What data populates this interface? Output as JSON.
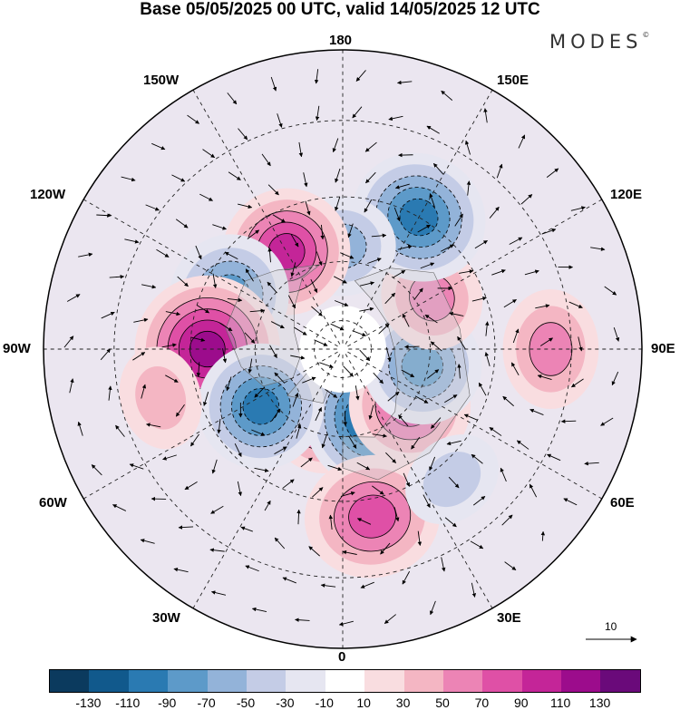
{
  "title": "Base 05/05/2025 00 UTC, valid 14/05/2025 12 UTC",
  "brand": "MODES",
  "brand_mark": "©",
  "longitude_labels": [
    "180",
    "150E",
    "120E",
    "90E",
    "60E",
    "30E",
    "0",
    "30W",
    "60W",
    "90W",
    "120W",
    "150W"
  ],
  "reference_vector": {
    "label": "10",
    "icon": "arrow-right-icon"
  },
  "colorbar": {
    "colors": [
      "#0b3a5e",
      "#11598c",
      "#2a7ab2",
      "#5d9ac9",
      "#93b3d9",
      "#c4cce6",
      "#e6e6f1",
      "#ffffff",
      "#f9dde0",
      "#f4b6c3",
      "#ec84b5",
      "#df50a6",
      "#c42598",
      "#9c0c8c",
      "#6a0a7a"
    ],
    "ticks": [
      "-130",
      "-110",
      "-90",
      "-70",
      "-50",
      "-30",
      "-10",
      "10",
      "30",
      "50",
      "70",
      "90",
      "110",
      "130"
    ]
  },
  "anomaly_centers": [
    {
      "lon": -15,
      "lat": 68,
      "value": 85
    },
    {
      "lon": 22,
      "lat": 64,
      "value": -105
    },
    {
      "lon": 50,
      "lat": 60,
      "value": 80
    },
    {
      "lon": 78,
      "lat": 62,
      "value": -75
    },
    {
      "lon": 120,
      "lat": 55,
      "value": 50
    },
    {
      "lon": 150,
      "lat": 40,
      "value": -85
    },
    {
      "lon": 180,
      "lat": 55,
      "value": -50
    },
    {
      "lon": -150,
      "lat": 52,
      "value": 85
    },
    {
      "lon": -115,
      "lat": 48,
      "value": -75
    },
    {
      "lon": -90,
      "lat": 45,
      "value": 110
    },
    {
      "lon": -55,
      "lat": 56,
      "value": -85
    },
    {
      "lon": 10,
      "lat": 35,
      "value": 80
    },
    {
      "lon": 90,
      "lat": 25,
      "value": 45
    },
    {
      "lon": -75,
      "lat": 30,
      "value": 25
    },
    {
      "lon": 40,
      "lat": 35,
      "value": -25
    }
  ]
}
